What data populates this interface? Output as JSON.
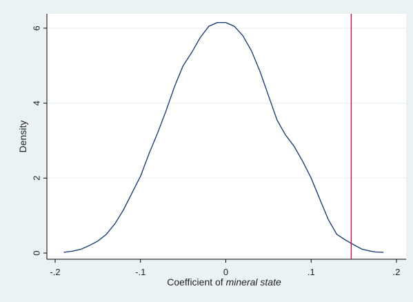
{
  "chart_data": {
    "type": "line",
    "title": "",
    "xlabel_prefix": "Coefficient of ",
    "xlabel_emph": "mineral state",
    "ylabel": "Density",
    "xlim": [
      -0.2,
      0.2
    ],
    "ylim": [
      0,
      6.2
    ],
    "xticks": [
      -0.2,
      -0.1,
      0,
      0.1,
      0.2
    ],
    "xtick_labels": [
      "-.2",
      "-.1",
      "0",
      ".1",
      ".2"
    ],
    "yticks": [
      0,
      2,
      4,
      6
    ],
    "ytick_labels": [
      "0",
      "2",
      "4",
      "6"
    ],
    "grid": "horizontal",
    "series": [
      {
        "color": "#1f3f73",
        "x": [
          -0.19,
          -0.18,
          -0.17,
          -0.16,
          -0.15,
          -0.14,
          -0.13,
          -0.12,
          -0.11,
          -0.1,
          -0.09,
          -0.08,
          -0.07,
          -0.06,
          -0.05,
          -0.04,
          -0.03,
          -0.02,
          -0.01,
          0.0,
          0.01,
          0.02,
          0.03,
          0.04,
          0.05,
          0.06,
          0.07,
          0.08,
          0.09,
          0.1,
          0.11,
          0.12,
          0.13,
          0.14,
          0.15,
          0.16,
          0.17,
          0.175,
          0.185
        ],
        "y": [
          0.02,
          0.05,
          0.1,
          0.2,
          0.32,
          0.5,
          0.78,
          1.15,
          1.6,
          2.05,
          2.65,
          3.2,
          3.8,
          4.45,
          5.0,
          5.35,
          5.75,
          6.05,
          6.15,
          6.15,
          6.05,
          5.8,
          5.4,
          4.85,
          4.2,
          3.55,
          3.15,
          2.85,
          2.45,
          2.0,
          1.45,
          0.9,
          0.5,
          0.35,
          0.22,
          0.1,
          0.05,
          0.03,
          0.02
        ]
      }
    ],
    "vline": {
      "x": 0.147,
      "color": "#c0104a"
    }
  }
}
